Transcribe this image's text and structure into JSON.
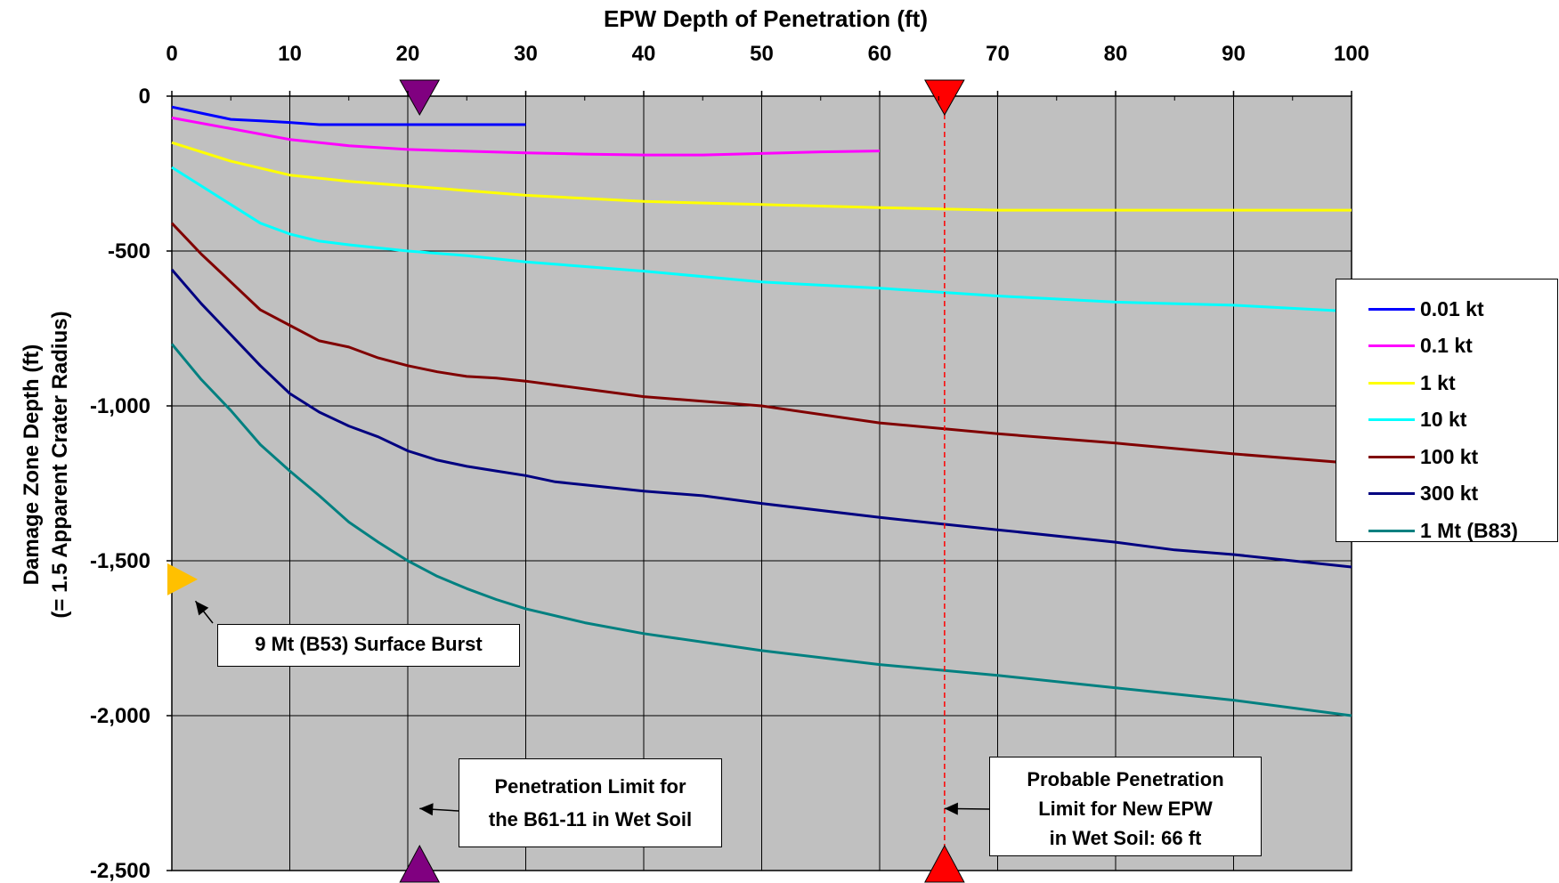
{
  "chart_data": {
    "type": "line",
    "title": "EPW Depth of Penetration (ft)",
    "ylabel": [
      "Damage Zone Depth (ft)",
      "(= 1.5 Apparent Crater Radius)"
    ],
    "xlim": [
      0,
      100
    ],
    "ylim": [
      -2500,
      0
    ],
    "x_ticks": [
      0,
      10,
      20,
      30,
      40,
      50,
      60,
      70,
      80,
      90,
      100
    ],
    "x_tick_labels": [
      "0",
      "10",
      "20",
      "30",
      "40",
      "50",
      "60",
      "70",
      "80",
      "90",
      "100"
    ],
    "y_ticks": [
      0,
      -500,
      -1000,
      -1500,
      -2000,
      -2500
    ],
    "y_tick_labels": [
      "0",
      "-500",
      "-1,000",
      "-1,500",
      "-2,000",
      "-2,500"
    ],
    "grid": true,
    "plot_background": "#c0c0c0",
    "legend_position": "right",
    "series": [
      {
        "name": "0.01 kt",
        "color": "#0000ff",
        "x": [
          0,
          2.5,
          5,
          7.5,
          10,
          12.5,
          15,
          20,
          25,
          30
        ],
        "y": [
          -35,
          -55,
          -75,
          -80,
          -85,
          -92,
          -92,
          -92,
          -92,
          -92
        ]
      },
      {
        "name": "0.1 kt",
        "color": "#ff00ff",
        "x": [
          0,
          5,
          10,
          15,
          20,
          25,
          30,
          35,
          40,
          45,
          50,
          55,
          60
        ],
        "y": [
          -70,
          -105,
          -140,
          -160,
          -172,
          -178,
          -183,
          -187,
          -190,
          -190,
          -185,
          -180,
          -177
        ]
      },
      {
        "name": "1 kt",
        "color": "#ffff00",
        "x": [
          0,
          5,
          10,
          15,
          20,
          25,
          30,
          40,
          50,
          60,
          70,
          80,
          90,
          100
        ],
        "y": [
          -150,
          -210,
          -255,
          -275,
          -290,
          -305,
          -320,
          -340,
          -350,
          -360,
          -368,
          -368,
          -368,
          -368
        ]
      },
      {
        "name": "10 kt",
        "color": "#00ffff",
        "x": [
          0,
          2.5,
          5,
          7.5,
          10,
          12.5,
          15,
          20,
          25,
          30,
          40,
          50,
          60,
          70,
          80,
          90,
          100
        ],
        "y": [
          -230,
          -290,
          -350,
          -410,
          -445,
          -468,
          -480,
          -500,
          -515,
          -535,
          -565,
          -600,
          -620,
          -645,
          -665,
          -675,
          -695
        ]
      },
      {
        "name": "100 kt",
        "color": "#800000",
        "x": [
          0,
          2.5,
          5,
          7.5,
          10,
          12.5,
          15,
          17.5,
          20,
          22.5,
          25,
          27.5,
          30,
          40,
          50,
          60,
          70,
          80,
          90,
          100
        ],
        "y": [
          -410,
          -510,
          -600,
          -690,
          -740,
          -790,
          -810,
          -845,
          -870,
          -890,
          -905,
          -910,
          -920,
          -970,
          -1000,
          -1055,
          -1090,
          -1120,
          -1155,
          -1185
        ]
      },
      {
        "name": "300 kt",
        "color": "#000080",
        "x": [
          0,
          2.5,
          5,
          7.5,
          10,
          12.5,
          15,
          17.5,
          20,
          22.5,
          25,
          27.5,
          30,
          32.5,
          35,
          40,
          45,
          50,
          60,
          70,
          80,
          85,
          90,
          100
        ],
        "y": [
          -560,
          -670,
          -770,
          -870,
          -960,
          -1020,
          -1065,
          -1100,
          -1145,
          -1175,
          -1195,
          -1210,
          -1225,
          -1245,
          -1255,
          -1275,
          -1290,
          -1315,
          -1360,
          -1400,
          -1440,
          -1465,
          -1480,
          -1520
        ]
      },
      {
        "name": "1 Mt (B83)",
        "color": "#008080",
        "x": [
          0,
          2.5,
          5,
          7.5,
          10,
          12.5,
          15,
          17.5,
          20,
          22.5,
          25,
          27.5,
          30,
          35,
          40,
          50,
          60,
          70,
          80,
          90,
          100
        ],
        "y": [
          -800,
          -915,
          -1015,
          -1125,
          -1210,
          -1290,
          -1375,
          -1440,
          -1500,
          -1550,
          -1590,
          -1625,
          -1655,
          -1700,
          -1735,
          -1790,
          -1835,
          -1870,
          -1910,
          -1950,
          -2000
        ]
      }
    ],
    "markers": [
      {
        "shape": "triangle-down",
        "x": 21,
        "y": 0,
        "color": "#800080"
      },
      {
        "shape": "triangle-up",
        "x": 21,
        "y": -2500,
        "color": "#800080"
      },
      {
        "shape": "triangle-down",
        "x": 65.5,
        "y": 0,
        "color": "#ff0000"
      },
      {
        "shape": "triangle-up",
        "x": 65.5,
        "y": -2500,
        "color": "#ff0000"
      },
      {
        "shape": "triangle-right",
        "x": 0,
        "y": -1560,
        "color": "#ffc000"
      }
    ],
    "reference_lines": [
      {
        "axis": "x",
        "value": 65.5,
        "color": "#ff0000",
        "style": "dashed"
      }
    ],
    "annotations": [
      {
        "lines": [
          "9 Mt (B53) Surface Burst"
        ],
        "arrow_to": {
          "x": 2,
          "y": -1630
        }
      },
      {
        "lines": [
          "Penetration Limit for",
          "the B61-11 in Wet Soil"
        ],
        "arrow_to": {
          "x": 21,
          "y": -2300
        }
      },
      {
        "lines": [
          "Probable Penetration",
          "Limit for New EPW",
          "in Wet Soil: 66 ft"
        ],
        "arrow_to": {
          "x": 65.5,
          "y": -2300
        }
      }
    ]
  }
}
